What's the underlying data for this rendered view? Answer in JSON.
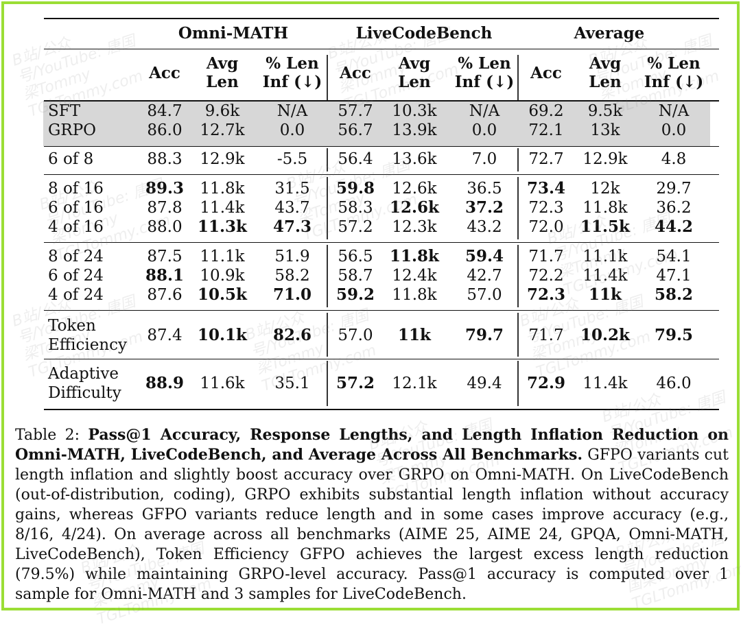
{
  "groups": [
    "Omni-MATH",
    "LiveCodeBench",
    "Average"
  ],
  "subcols": [
    {
      "l1": "Acc",
      "l2": ""
    },
    {
      "l1": "Avg",
      "l2": "Len"
    },
    {
      "l1": "% Len",
      "l2": "Inf (↓)"
    }
  ],
  "rows": [
    {
      "label": [
        "SFT"
      ],
      "cells": [
        "84.7",
        "9.6k",
        "N/A",
        "57.7",
        "10.3k",
        "N/A",
        "69.2",
        "9.5k",
        "N/A"
      ],
      "bold": []
    },
    {
      "label": [
        "GRPO"
      ],
      "cells": [
        "86.0",
        "12.7k",
        "0.0",
        "56.7",
        "13.9k",
        "0.0",
        "72.1",
        "13k",
        "0.0"
      ],
      "bold": []
    },
    {
      "label": [
        "6 of 8"
      ],
      "cells": [
        "88.3",
        "12.9k",
        "-5.5",
        "56.4",
        "13.6k",
        "7.0",
        "72.7",
        "12.9k",
        "4.8"
      ],
      "bold": []
    },
    {
      "label": [
        "8 of 16"
      ],
      "cells": [
        "89.3",
        "11.8k",
        "31.5",
        "59.8",
        "12.6k",
        "36.5",
        "73.4",
        "12k",
        "29.7"
      ],
      "bold": [
        0,
        3,
        6
      ]
    },
    {
      "label": [
        "6 of 16"
      ],
      "cells": [
        "87.8",
        "11.4k",
        "43.7",
        "58.3",
        "12.6k",
        "37.2",
        "72.3",
        "11.8k",
        "36.2"
      ],
      "bold": [
        4,
        5
      ]
    },
    {
      "label": [
        "4 of 16"
      ],
      "cells": [
        "88.0",
        "11.3k",
        "47.3",
        "57.2",
        "12.3k",
        "43.2",
        "72.0",
        "11.5k",
        "44.2"
      ],
      "bold": [
        1,
        2,
        7,
        8
      ]
    },
    {
      "label": [
        "8 of 24"
      ],
      "cells": [
        "87.5",
        "11.1k",
        "51.9",
        "56.5",
        "11.8k",
        "59.4",
        "71.7",
        "11.1k",
        "54.1"
      ],
      "bold": [
        4,
        5
      ]
    },
    {
      "label": [
        "6 of 24"
      ],
      "cells": [
        "88.1",
        "10.9k",
        "58.2",
        "58.7",
        "12.4k",
        "42.7",
        "72.2",
        "11.4k",
        "47.1"
      ],
      "bold": [
        0
      ]
    },
    {
      "label": [
        "4 of 24"
      ],
      "cells": [
        "87.6",
        "10.5k",
        "71.0",
        "59.2",
        "11.8k",
        "57.0",
        "72.3",
        "11k",
        "58.2"
      ],
      "bold": [
        1,
        2,
        3,
        6,
        7,
        8
      ]
    },
    {
      "label": [
        "Token",
        "Efficiency"
      ],
      "cells": [
        "87.4",
        "10.1k",
        "82.6",
        "57.0",
        "11k",
        "79.7",
        "71.7",
        "10.2k",
        "79.5"
      ],
      "bold": [
        1,
        2,
        4,
        5,
        7,
        8
      ]
    },
    {
      "label": [
        "Adaptive",
        "Difficulty"
      ],
      "cells": [
        "88.9",
        "11.6k",
        "35.1",
        "57.2",
        "12.1k",
        "49.4",
        "72.9",
        "11.4k",
        "46.0"
      ],
      "bold": [
        0,
        3,
        6
      ]
    }
  ],
  "caption": {
    "prefix": "Table 2: ",
    "bold": "Pass@1 Accuracy, Response Lengths, and Length Inflation Reduction on Omni-MATH, LiveCodeBench, and Average Across All Benchmarks.",
    "body": " GFPO variants cut length inflation and slightly boost accuracy over GRPO on Omni-MATH. On LiveCodeBench (out-of-distribution, coding), GRPO exhibits substantial length inflation without accuracy gains, whereas GFPO variants reduce length and in some cases improve accuracy (e.g., 8/16, 4/24). On average across all benchmarks (AIME 25, AIME 24, GPQA, Omni-MATH, LiveCodeBench), Token Efficiency GFPO achieves the largest excess length reduction (79.5%) while maintaining GRPO-level accuracy. Pass@1 accuracy is computed over 1 sample for Omni-MATH and 3 samples for LiveCodeBench."
  },
  "watermark": "B站/公众号/YouTube: 唐国梁Tommy TGLTommy.com",
  "colors": {
    "frame": "#9bde35",
    "shade": "#d7d7d7"
  }
}
